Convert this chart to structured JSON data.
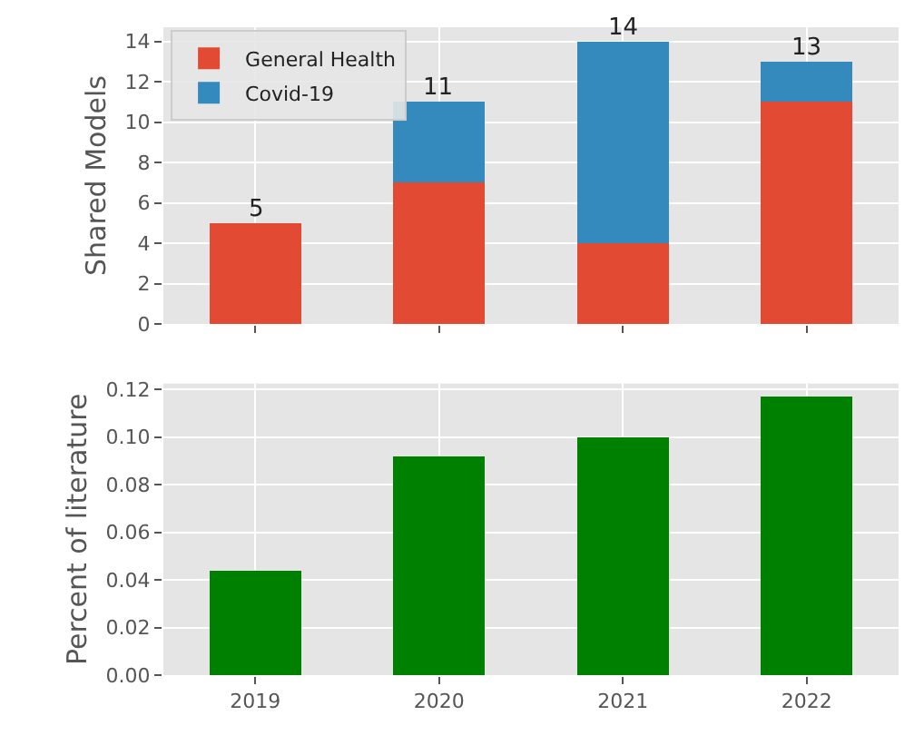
{
  "chart_data": [
    {
      "type": "bar",
      "stacked": true,
      "categories": [
        "2019",
        "2020",
        "2021",
        "2022"
      ],
      "ylabel": "Shared Models",
      "ylim": [
        0,
        14.7
      ],
      "yticks": [
        0,
        2,
        4,
        6,
        8,
        10,
        12,
        14
      ],
      "grid": true,
      "legend": "top left",
      "tick_labels": "y",
      "series": [
        {
          "name": "General Health",
          "color": "#e24a33",
          "values": [
            5,
            7,
            4,
            11
          ]
        },
        {
          "name": "Covid-19",
          "color": "#348abd",
          "values": [
            0,
            4,
            10,
            2
          ]
        }
      ],
      "totals": [
        "5",
        "11",
        "14",
        "13"
      ]
    },
    {
      "type": "bar",
      "categories": [
        "2019",
        "2020",
        "2021",
        "2022"
      ],
      "ylabel": "Percent of literature",
      "ylim": [
        0,
        0.1225
      ],
      "yticks": [
        {
          "value": 0,
          "label": "0.00"
        },
        {
          "value": 0.02,
          "label": "0.02"
        },
        {
          "value": 0.04,
          "label": "0.04"
        },
        {
          "value": 0.06,
          "label": "0.06"
        },
        {
          "value": 0.08,
          "label": "0.08"
        },
        {
          "value": 0.1,
          "label": "0.10"
        },
        {
          "value": 0.12,
          "label": "0.12"
        }
      ],
      "grid": true,
      "series": [
        {
          "color": "#008000",
          "values": [
            0.044,
            0.092,
            0.1,
            0.117
          ]
        }
      ]
    }
  ]
}
